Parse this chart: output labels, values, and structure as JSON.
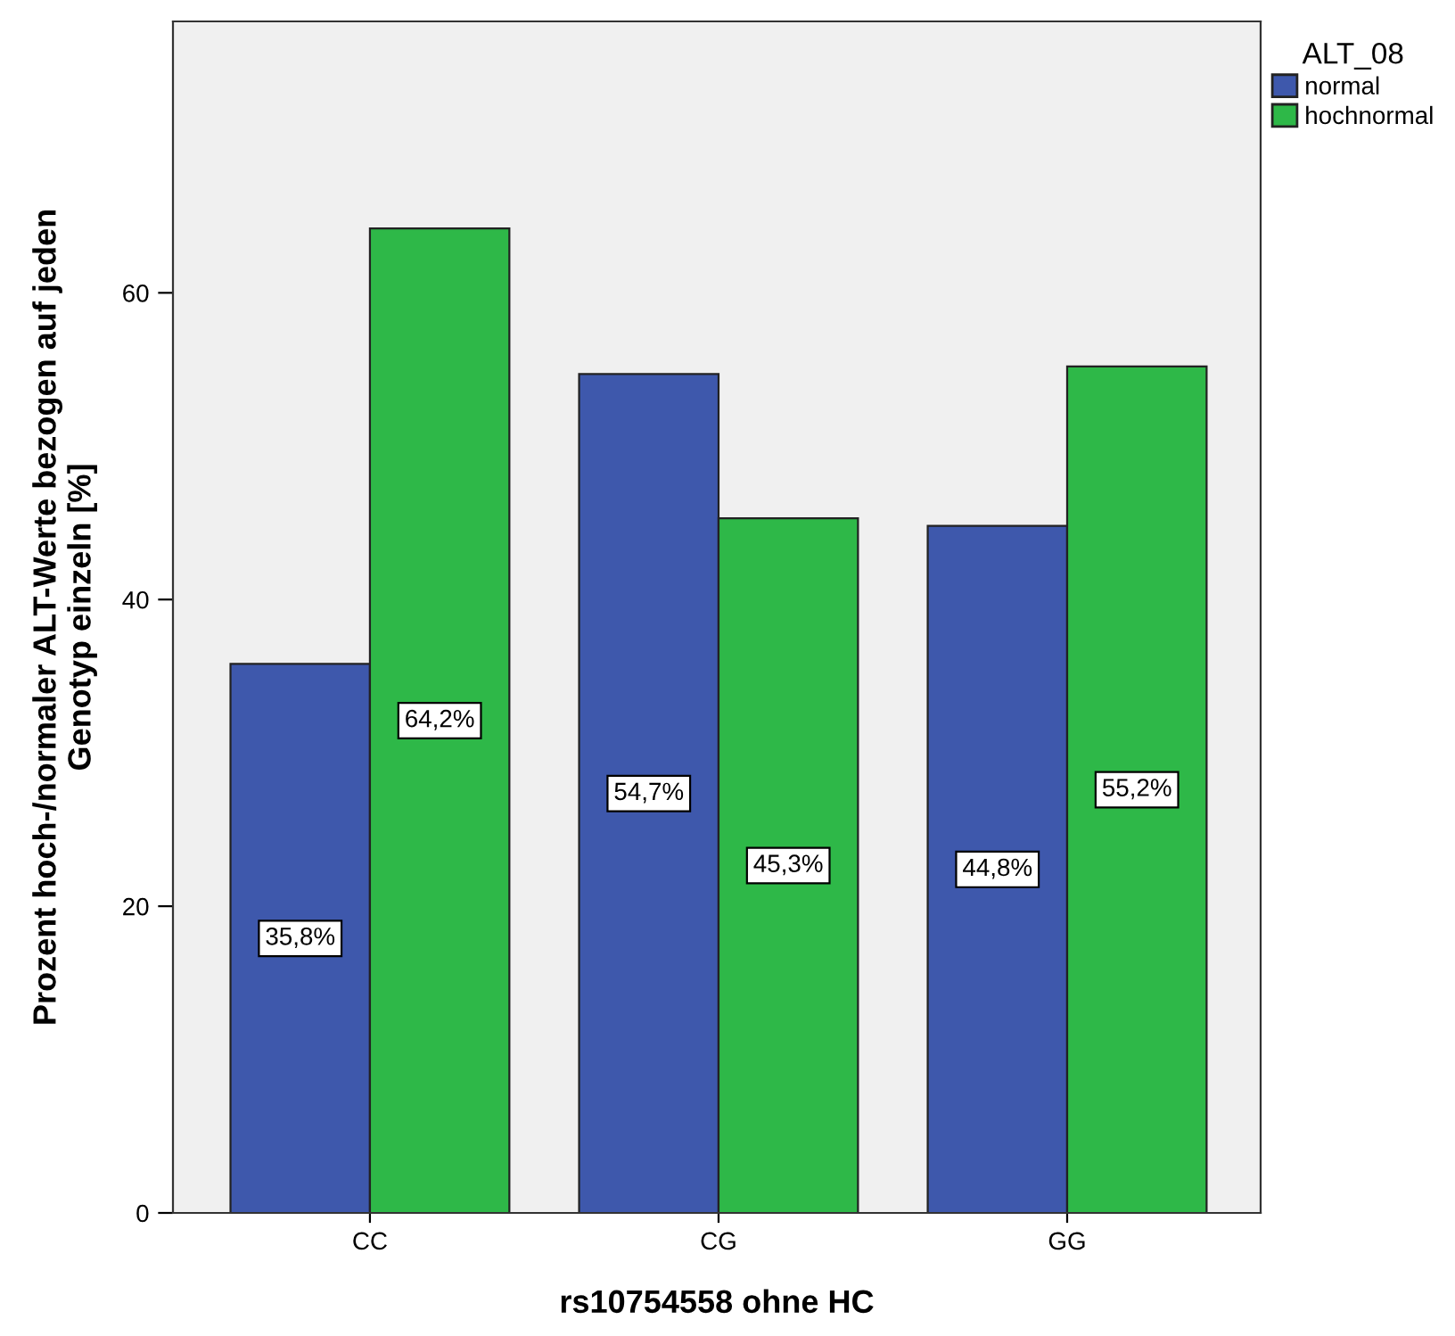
{
  "chart_data": {
    "type": "bar",
    "xlabel": "rs10754558 ohne HC",
    "ylabel": "Prozent hoch-/normaler ALT-Werte bezogen auf jeden\nGenotyp einzeln [%]",
    "legend_title": "ALT_08",
    "categories": [
      "CC",
      "CG",
      "GG"
    ],
    "series": [
      {
        "name": "normal",
        "color": "#3e58ac",
        "values": [
          35.8,
          54.7,
          44.8
        ],
        "value_labels": [
          "35,8%",
          "54,7%",
          "44,8%"
        ]
      },
      {
        "name": "hochnormal",
        "color": "#2eb848",
        "values": [
          64.2,
          45.3,
          55.2
        ],
        "value_labels": [
          "64,2%",
          "45,3%",
          "55,2%"
        ]
      }
    ],
    "ylim": [
      0,
      77.7
    ],
    "yticks": [
      0,
      20,
      40,
      60
    ],
    "grid": false,
    "legend": "top right"
  }
}
